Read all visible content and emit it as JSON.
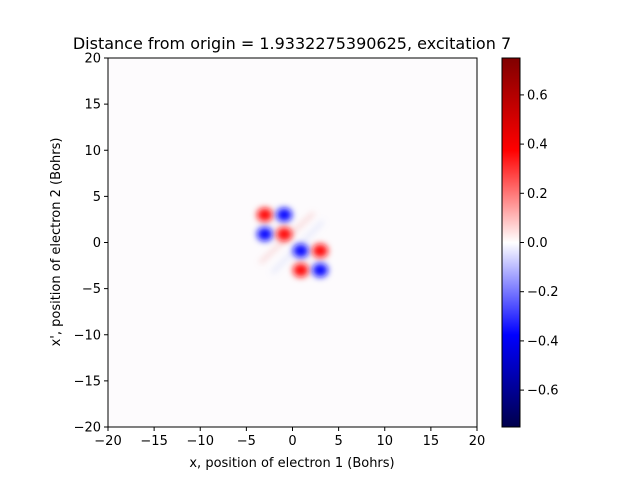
{
  "chart_data": {
    "type": "heatmap",
    "title": "Distance from origin = 1.9332275390625, excitation 7",
    "xlabel": "x, position of electron 1 (Bohrs)",
    "ylabel": "x', position of electron 2 (Bohrs)",
    "xlim": [
      -20,
      20
    ],
    "ylim": [
      -20,
      20
    ],
    "xticks": [
      -20,
      -15,
      -10,
      -5,
      0,
      5,
      10,
      15,
      20
    ],
    "yticks": [
      -20,
      -15,
      -10,
      -5,
      0,
      5,
      10,
      15,
      20
    ],
    "xtick_labels": [
      "−20",
      "−15",
      "−10",
      "−5",
      "0",
      "5",
      "10",
      "15",
      "20"
    ],
    "ytick_labels": [
      "−20",
      "−15",
      "−10",
      "−5",
      "0",
      "5",
      "10",
      "15",
      "20"
    ],
    "colormap": "seismic",
    "colors": {
      "min": "#00004c",
      "low": "#0000ff",
      "mid": "#ffffff",
      "high": "#ff0000",
      "max": "#800000"
    },
    "colorbar": {
      "range": [
        -0.75,
        0.75
      ],
      "ticks": [
        -0.6,
        -0.4,
        -0.2,
        0.0,
        0.2,
        0.4,
        0.6
      ],
      "tick_labels": [
        "−0.6",
        "−0.4",
        "−0.2",
        "0.0",
        "0.2",
        "0.4",
        "0.6"
      ]
    },
    "lobes": [
      {
        "x": -3.0,
        "y": 3.0,
        "value": 0.5
      },
      {
        "x": -0.9,
        "y": 3.0,
        "value": -0.5
      },
      {
        "x": -3.0,
        "y": 0.9,
        "value": -0.5
      },
      {
        "x": -0.9,
        "y": 0.9,
        "value": 0.5
      },
      {
        "x": 0.9,
        "y": -0.9,
        "value": -0.5
      },
      {
        "x": 3.0,
        "y": -0.9,
        "value": 0.5
      },
      {
        "x": 0.9,
        "y": -3.0,
        "value": 0.5
      },
      {
        "x": 3.0,
        "y": -3.0,
        "value": -0.5
      }
    ]
  }
}
